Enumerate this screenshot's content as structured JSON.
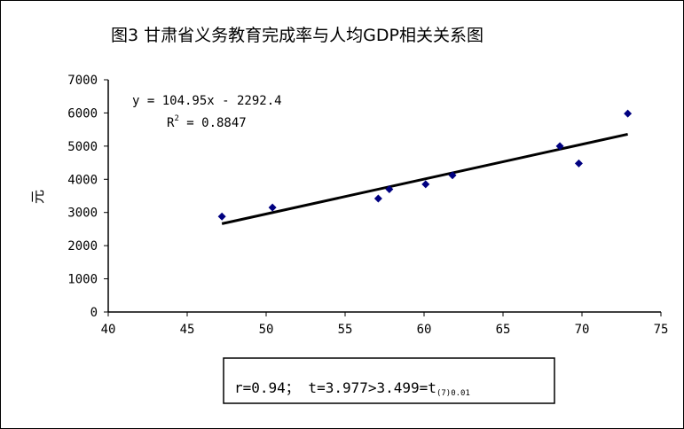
{
  "title": "图3      甘肃省义务教育完成率与人均GDP相关关系图",
  "chart_data": {
    "type": "scatter",
    "title": "图3      甘肃省义务教育完成率与人均GDP相关关系图",
    "xlabel": "",
    "ylabel": "元",
    "xlim": [
      40,
      75
    ],
    "ylim": [
      0,
      7000
    ],
    "xticks": [
      "40",
      "45",
      "50",
      "55",
      "60",
      "65",
      "70",
      "75"
    ],
    "yticks": [
      "0",
      "1000",
      "2000",
      "3000",
      "4000",
      "5000",
      "6000",
      "7000"
    ],
    "grid": false,
    "points": [
      {
        "x": 47.2,
        "y": 2880
      },
      {
        "x": 50.4,
        "y": 3150
      },
      {
        "x": 57.1,
        "y": 3420
      },
      {
        "x": 57.8,
        "y": 3700
      },
      {
        "x": 60.1,
        "y": 3850
      },
      {
        "x": 61.8,
        "y": 4120
      },
      {
        "x": 68.6,
        "y": 5000
      },
      {
        "x": 69.8,
        "y": 4480
      },
      {
        "x": 72.9,
        "y": 5980
      }
    ],
    "trendline": {
      "type": "linear",
      "slope": 104.95,
      "intercept": -2292.4,
      "x_range": [
        47.2,
        72.9
      ]
    },
    "marker_color": "#000080",
    "line_color": "#000000"
  },
  "equation_line1": "y = 104.95x - 2292.4",
  "equation_r2_label": "R",
  "equation_r2_sup": "2",
  "equation_r2_value": " = 0.8847",
  "stat_main": "r=0.94； t=3.977>3.499=t",
  "stat_sub": "(7)0.01"
}
